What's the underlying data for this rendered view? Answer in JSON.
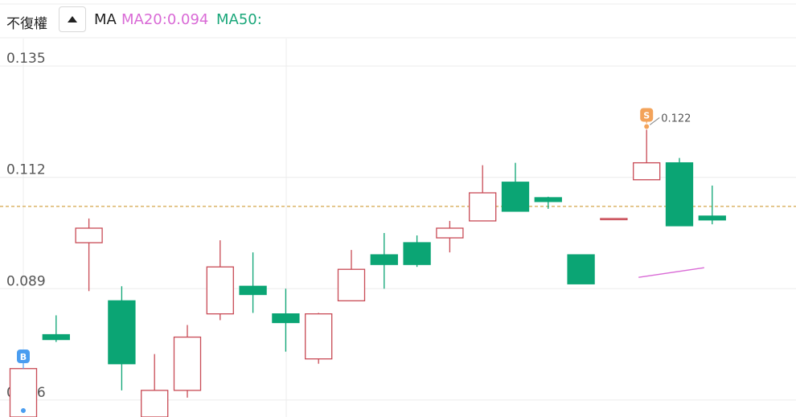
{
  "toolbar": {
    "adjust_label": "不復權",
    "collapse_icon": "triangle-up-icon",
    "ma_label": "MA",
    "ma20_label": "MA20:0.094",
    "ma50_label": "MA50:"
  },
  "colors": {
    "up": "#c84a55",
    "down": "#0ba574",
    "ma20": "#d96ad6",
    "ma50": "#1aa77a",
    "price_line": "#d4a64a",
    "buy_marker": "#4a9df0",
    "sell_marker": "#f3a35a"
  },
  "chart_data": {
    "type": "candlestick",
    "y_ticks": [
      "0.135",
      "0.112",
      "0.089",
      "0.066"
    ],
    "ylim": [
      0.0625,
      0.1395
    ],
    "current_price": 0.106,
    "candles": [
      {
        "o": 0.0625,
        "h": 0.0725,
        "l": 0.0625,
        "c": 0.0725
      },
      {
        "o": 0.0795,
        "h": 0.0835,
        "l": 0.078,
        "c": 0.0785
      },
      {
        "o": 0.0985,
        "h": 0.1035,
        "l": 0.0885,
        "c": 0.1015
      },
      {
        "o": 0.0865,
        "h": 0.0895,
        "l": 0.068,
        "c": 0.0735
      },
      {
        "o": 0.0625,
        "h": 0.0755,
        "l": 0.0625,
        "c": 0.068
      },
      {
        "o": 0.068,
        "h": 0.0815,
        "l": 0.0665,
        "c": 0.079
      },
      {
        "o": 0.0838,
        "h": 0.099,
        "l": 0.0825,
        "c": 0.0935
      },
      {
        "o": 0.0895,
        "h": 0.0965,
        "l": 0.084,
        "c": 0.0878
      },
      {
        "o": 0.0838,
        "h": 0.089,
        "l": 0.076,
        "c": 0.082
      },
      {
        "o": 0.0745,
        "h": 0.084,
        "l": 0.0735,
        "c": 0.0838
      },
      {
        "o": 0.0865,
        "h": 0.097,
        "l": 0.0865,
        "c": 0.093
      },
      {
        "o": 0.096,
        "h": 0.1005,
        "l": 0.089,
        "c": 0.094
      },
      {
        "o": 0.0985,
        "h": 0.1,
        "l": 0.0935,
        "c": 0.094
      },
      {
        "o": 0.0995,
        "h": 0.103,
        "l": 0.0965,
        "c": 0.1015
      },
      {
        "o": 0.103,
        "h": 0.1145,
        "l": 0.103,
        "c": 0.1088
      },
      {
        "o": 0.111,
        "h": 0.115,
        "l": 0.105,
        "c": 0.105
      },
      {
        "o": 0.1078,
        "h": 0.108,
        "l": 0.1055,
        "c": 0.107
      },
      {
        "o": 0.096,
        "h": 0.096,
        "l": 0.09,
        "c": 0.09
      },
      {
        "o": 0.1035,
        "h": 0.1035,
        "l": 0.1035,
        "c": 0.1035
      },
      {
        "o": 0.1115,
        "h": 0.1225,
        "l": 0.1115,
        "c": 0.115
      },
      {
        "o": 0.115,
        "h": 0.116,
        "l": 0.102,
        "c": 0.102
      },
      {
        "o": 0.104,
        "h": 0.1103,
        "l": 0.1023,
        "c": 0.1032
      }
    ],
    "ma20_line": [
      [
        19,
        0.092
      ],
      [
        21,
        0.094
      ]
    ],
    "markers": [
      {
        "type": "buy",
        "label": "B",
        "candle": 0,
        "price": 0.0625
      },
      {
        "type": "sell",
        "label": "S",
        "candle": 19,
        "price": 0.1225,
        "value_label": "0.122"
      }
    ]
  }
}
